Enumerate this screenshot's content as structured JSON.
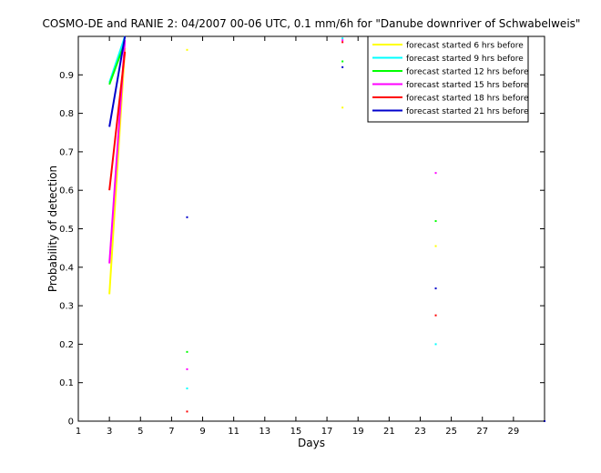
{
  "chart_data": {
    "type": "line",
    "title": "COSMO-DE and RANIE 2: 04/2007 00-06 UTC, 0.1 mm/6h for \"Danube downriver of Schwabelweis\"",
    "xlabel": "Days",
    "ylabel": "Probability of detection",
    "xlim": [
      1,
      31
    ],
    "ylim": [
      0,
      1
    ],
    "xticks": [
      1,
      3,
      5,
      7,
      9,
      11,
      13,
      15,
      17,
      19,
      21,
      23,
      25,
      27,
      29
    ],
    "yticks": [
      0,
      0.1,
      0.2,
      0.3,
      0.4,
      0.5,
      0.6,
      0.7,
      0.8,
      0.9
    ],
    "legend_position": "top-right",
    "grid": false,
    "series": [
      {
        "name": "forecast started 6 hrs before",
        "color": "#ffff00",
        "points": [
          [
            3,
            0.33
          ],
          [
            4,
            0.97
          ],
          [
            8,
            0.965
          ],
          [
            18,
            0.815
          ],
          [
            24,
            0.455
          ]
        ]
      },
      {
        "name": "forecast started 9 hrs before",
        "color": "#00ffff",
        "points": [
          [
            3,
            0.88
          ],
          [
            4,
            1.0
          ],
          [
            8,
            0.085
          ],
          [
            18,
            0.995
          ],
          [
            24,
            0.2
          ]
        ]
      },
      {
        "name": "forecast started 12 hrs before",
        "color": "#00ff00",
        "points": [
          [
            3,
            0.875
          ],
          [
            4,
            0.985
          ],
          [
            8,
            0.18
          ],
          [
            18,
            0.935
          ],
          [
            24,
            0.52
          ]
        ]
      },
      {
        "name": "forecast started 15 hrs before",
        "color": "#ff00ff",
        "points": [
          [
            3,
            0.41
          ],
          [
            4,
            0.99
          ],
          [
            8,
            0.135
          ],
          [
            18,
            0.99
          ],
          [
            24,
            0.645
          ]
        ]
      },
      {
        "name": "forecast started 18 hrs before",
        "color": "#ff0000",
        "points": [
          [
            3,
            0.6
          ],
          [
            4,
            0.96
          ],
          [
            8,
            0.025
          ],
          [
            18,
            0.985
          ],
          [
            24,
            0.275
          ]
        ]
      },
      {
        "name": "forecast started 21 hrs before",
        "color": "#0000cc",
        "points": [
          [
            3,
            0.765
          ],
          [
            4,
            1.0
          ],
          [
            8,
            0.53
          ],
          [
            18,
            0.92
          ],
          [
            24,
            0.345
          ],
          [
            31,
            0.0
          ]
        ]
      }
    ]
  }
}
